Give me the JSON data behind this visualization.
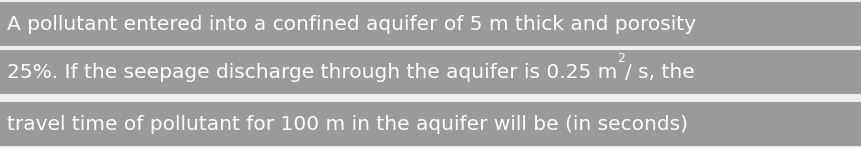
{
  "background_color": "#f0f0f0",
  "row_color": "#9a9a9a",
  "gap_color": "#f0f0f0",
  "text_color": "#ffffff",
  "line1": "A pollutant entered into a confined aquifer of 5 m thick and porosity",
  "line2_before_super": "25%. If the seepage discharge through the aquifer is 0.25 m",
  "line2_super": "2",
  "line2_after_super": "/ s, the",
  "line3": "travel time of pollutant for 100 m in the aquifer will be (in seconds)",
  "font_size": 14.5,
  "super_font_size": 9,
  "fig_width": 8.62,
  "fig_height": 1.48,
  "dpi": 100
}
